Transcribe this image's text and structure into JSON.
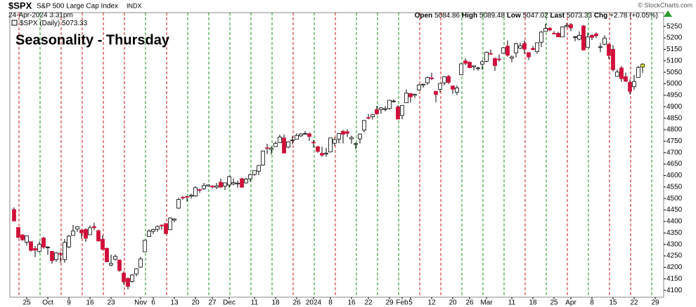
{
  "chart_data": {
    "type": "candlestick",
    "symbol": "$SPX",
    "name": "S&P 500 Large Cap Index",
    "exchange": "INDX",
    "timestamp": "24-Apr-2024 3:31pm",
    "quote_labels": [
      "Open",
      "High",
      "Low",
      "Last",
      "Chg"
    ],
    "change": "+2.78 (+0.05%)",
    "legend_label": "$SPX (Daily)",
    "annotation": "Seasonality - Thursday",
    "watermark": "© StockCharts.com",
    "up_color": "#ffffff",
    "down_color": "#d0103a",
    "last_color": "#ffff33",
    "annotation_color": "#1a1adc",
    "categories": [
      null,
      null,
      null,
      "25",
      null,
      null,
      null,
      null,
      "Oct",
      null,
      null,
      null,
      null,
      "9",
      null,
      null,
      null,
      null,
      "16",
      null,
      null,
      null,
      null,
      "23",
      null,
      null,
      null,
      null,
      null,
      null,
      "Nov",
      null,
      null,
      "6",
      null,
      null,
      null,
      null,
      "13",
      null,
      null,
      null,
      null,
      "20",
      null,
      null,
      null,
      "27",
      null,
      null,
      null,
      "Dec",
      null,
      null,
      null,
      null,
      null,
      "11",
      null,
      null,
      null,
      null,
      "18",
      null,
      null,
      null,
      null,
      "26",
      null,
      null,
      null,
      "2024",
      null,
      null,
      null,
      "8",
      null,
      null,
      null,
      null,
      "16",
      null,
      null,
      null,
      "22",
      null,
      null,
      null,
      null,
      "29",
      null,
      null,
      "Feb",
      null,
      "5",
      null,
      null,
      null,
      null,
      "12",
      null,
      null,
      null,
      null,
      "20",
      null,
      null,
      null,
      "26",
      null,
      null,
      null,
      "Mar",
      null,
      null,
      null,
      null,
      null,
      "11",
      null,
      null,
      null,
      null,
      "18",
      null,
      null,
      null,
      null,
      "25",
      null,
      null,
      null,
      "Apr",
      null,
      null,
      null,
      null,
      "8",
      null,
      null,
      null,
      null,
      "15",
      null,
      null,
      null,
      null,
      "22",
      null,
      null,
      null,
      null,
      "29",
      null,
      null
    ],
    "open": [
      4452,
      4374,
      4341,
      4310,
      4312,
      4282,
      4269,
      4328,
      4285,
      4270,
      4233,
      4260,
      4234,
      4289,
      4339,
      4367,
      4362,
      4365,
      4342,
      4378,
      4360,
      4322,
      4283,
      4210,
      4235,
      4232,
      4175,
      4152,
      4139,
      4171,
      4201,
      4268,
      4334,
      4357,
      4366,
      4384,
      4391,
      4364,
      4406,
      4458,
      4505,
      4509,
      4510,
      4511,
      4539,
      4543,
      4555,
      4554,
      4549,
      4571,
      4554,
      4559,
      4564,
      4567,
      4586,
      4568,
      4586,
      4605,
      4619,
      4646,
      4721,
      4714,
      4726,
      4743,
      4764,
      4724,
      4753,
      4758,
      4773,
      4782,
      4782,
      4745,
      4726,
      4697,
      4697,
      4703,
      4741,
      4759,
      4793,
      4791,
      4760,
      4739,
      4760,
      4798,
      4853,
      4856,
      4888,
      4888,
      4890,
      4892,
      4925,
      4899,
      4862,
      4917,
      4957,
      4950,
      4973,
      4995,
      5004,
      5026,
      4967,
      4976,
      5004,
      5032,
      4990,
      4963,
      5039,
      5100,
      5094,
      5074,
      5067,
      5085,
      5098,
      5132,
      5110,
      5108,
      5133,
      5164,
      5111,
      5134,
      5155,
      5175,
      5136,
      5154,
      5140,
      5181,
      5228,
      5242,
      5220,
      5220,
      5204,
      5249,
      5258,
      5204,
      5194,
      5252,
      5158,
      5211,
      5217,
      5160,
      5172,
      5172,
      5150,
      5032,
      5069,
      5031,
      5006,
      4987,
      5028,
      5084.86,
      null,
      null,
      null,
      null,
      null
    ],
    "high": [
      4461,
      4375,
      4345,
      4339,
      4313,
      4293,
      4313,
      4333,
      4292,
      4271,
      4267,
      4268,
      4324,
      4341,
      4385,
      4378,
      4366,
      4371,
      4383,
      4394,
      4364,
      4339,
      4286,
      4255,
      4255,
      4232,
      4183,
      4156,
      4171,
      4195,
      4246,
      4320,
      4366,
      4368,
      4383,
      4387,
      4393,
      4418,
      4414,
      4502,
      4511,
      4512,
      4521,
      4553,
      4542,
      4568,
      4560,
      4558,
      4568,
      4587,
      4569,
      4599,
      4587,
      4578,
      4591,
      4590,
      4609,
      4623,
      4646,
      4709,
      4738,
      4726,
      4749,
      4778,
      4779,
      4749,
      4772,
      4784,
      4785,
      4794,
      4788,
      4755,
      4729,
      4726,
      4721,
      4765,
      4766,
      4785,
      4799,
      4802,
      4774,
      4744,
      4783,
      4842,
      4868,
      4868,
      4903,
      4898,
      4903,
      4929,
      4932,
      4906,
      4907,
      4975,
      4960,
      4957,
      4999,
      5000,
      5030,
      5048,
      4969,
      5002,
      5033,
      5038,
      4993,
      4993,
      5088,
      5111,
      5097,
      5080,
      5074,
      5104,
      5141,
      5149,
      5114,
      5127,
      5160,
      5189,
      5124,
      5179,
      5179,
      5189,
      5136,
      5165,
      5180,
      5230,
      5261,
      5246,
      5229,
      5226,
      5250,
      5264,
      5264,
      5208,
      5228,
      5256,
      5222,
      5216,
      5224,
      5178,
      5211,
      5175,
      5168,
      5062,
      5077,
      5049,
      5019,
      5039,
      5078,
      5089.48,
      null,
      null,
      null,
      null,
      null
    ],
    "low": [
      4401,
      4329,
      4316,
      4295,
      4269,
      4245,
      4264,
      4281,
      4254,
      4216,
      4224,
      4220,
      4220,
      4283,
      4339,
      4355,
      4325,
      4311,
      4342,
      4363,
      4312,
      4276,
      4224,
      4204,
      4230,
      4181,
      4126,
      4104,
      4133,
      4161,
      4198,
      4268,
      4334,
      4345,
      4355,
      4365,
      4345,
      4363,
      4396,
      4455,
      4495,
      4487,
      4500,
      4507,
      4525,
      4537,
      4554,
      4544,
      4541,
      4546,
      4537,
      4547,
      4557,
      4546,
      4547,
      4565,
      4574,
      4598,
      4602,
      4643,
      4694,
      4692,
      4725,
      4743,
      4697,
      4719,
      4736,
      4758,
      4768,
      4780,
      4751,
      4722,
      4699,
      4682,
      4682,
      4700,
      4730,
      4740,
      4740,
      4768,
      4739,
      4714,
      4740,
      4788,
      4845,
      4844,
      4865,
      4869,
      4880,
      4887,
      4917,
      4845,
      4845,
      4916,
      4918,
      4938,
      4969,
      4983,
      4995,
      5016,
      4920,
      4963,
      4993,
      4999,
      4956,
      4950,
      5038,
      5081,
      5068,
      5058,
      5057,
      5061,
      5094,
      5127,
      5056,
      5097,
      5132,
      5118,
      5094,
      5114,
      5151,
      5131,
      5104,
      5145,
      5131,
      5160,
      5228,
      5229,
      5216,
      5203,
      5204,
      5245,
      5229,
      5185,
      5189,
      5146,
      5157,
      5191,
      5199,
      5138,
      5168,
      5107,
      5053,
      5031,
      5008,
      5008,
      4953,
      4973,
      5028,
      5047.02,
      null,
      null,
      null,
      null,
      null
    ],
    "close": [
      4402,
      4330,
      4320,
      4337,
      4274,
      4275,
      4300,
      4288,
      4288,
      4229,
      4263,
      4258,
      4309,
      4336,
      4358,
      4377,
      4350,
      4327,
      4373,
      4373,
      4315,
      4278,
      4224,
      4217,
      4248,
      4186,
      4137,
      4117,
      4167,
      4194,
      4237,
      4318,
      4358,
      4365,
      4378,
      4383,
      4347,
      4415,
      4411,
      4496,
      4502,
      4508,
      4514,
      4547,
      4538,
      4556,
      4559,
      4550,
      4555,
      4550,
      4568,
      4595,
      4569,
      4567,
      4549,
      4585,
      4604,
      4622,
      4644,
      4707,
      4720,
      4719,
      4740,
      4768,
      4698,
      4747,
      4755,
      4775,
      4781,
      4783,
      4770,
      4743,
      4705,
      4689,
      4697,
      4764,
      4757,
      4783,
      4780,
      4784,
      4766,
      4739,
      4781,
      4840,
      4850,
      4865,
      4869,
      4895,
      4891,
      4928,
      4925,
      4846,
      4906,
      4959,
      4943,
      4954,
      4995,
      4998,
      5027,
      5022,
      4953,
      5001,
      5030,
      5006,
      4976,
      4982,
      5087,
      5089,
      5070,
      5078,
      5069,
      5096,
      5137,
      5131,
      5079,
      5105,
      5157,
      5124,
      5117,
      5175,
      5165,
      5151,
      5117,
      5149,
      5179,
      5225,
      5241,
      5234,
      5218,
      5204,
      5248,
      5254,
      5243,
      5205,
      5211,
      5147,
      5204,
      5202,
      5209,
      5161,
      5199,
      5123,
      5061,
      5051,
      5022,
      5011,
      4967,
      5010,
      5071,
      5073.33,
      null,
      null,
      null,
      null,
      null
    ],
    "ylim": [
      4070,
      5310
    ],
    "yticks": [
      4100,
      4150,
      4200,
      4250,
      4300,
      4350,
      4400,
      4450,
      4500,
      4550,
      4600,
      4650,
      4700,
      4750,
      4800,
      4850,
      4900,
      4950,
      5000,
      5050,
      5100,
      5150,
      5200,
      5250
    ]
  }
}
